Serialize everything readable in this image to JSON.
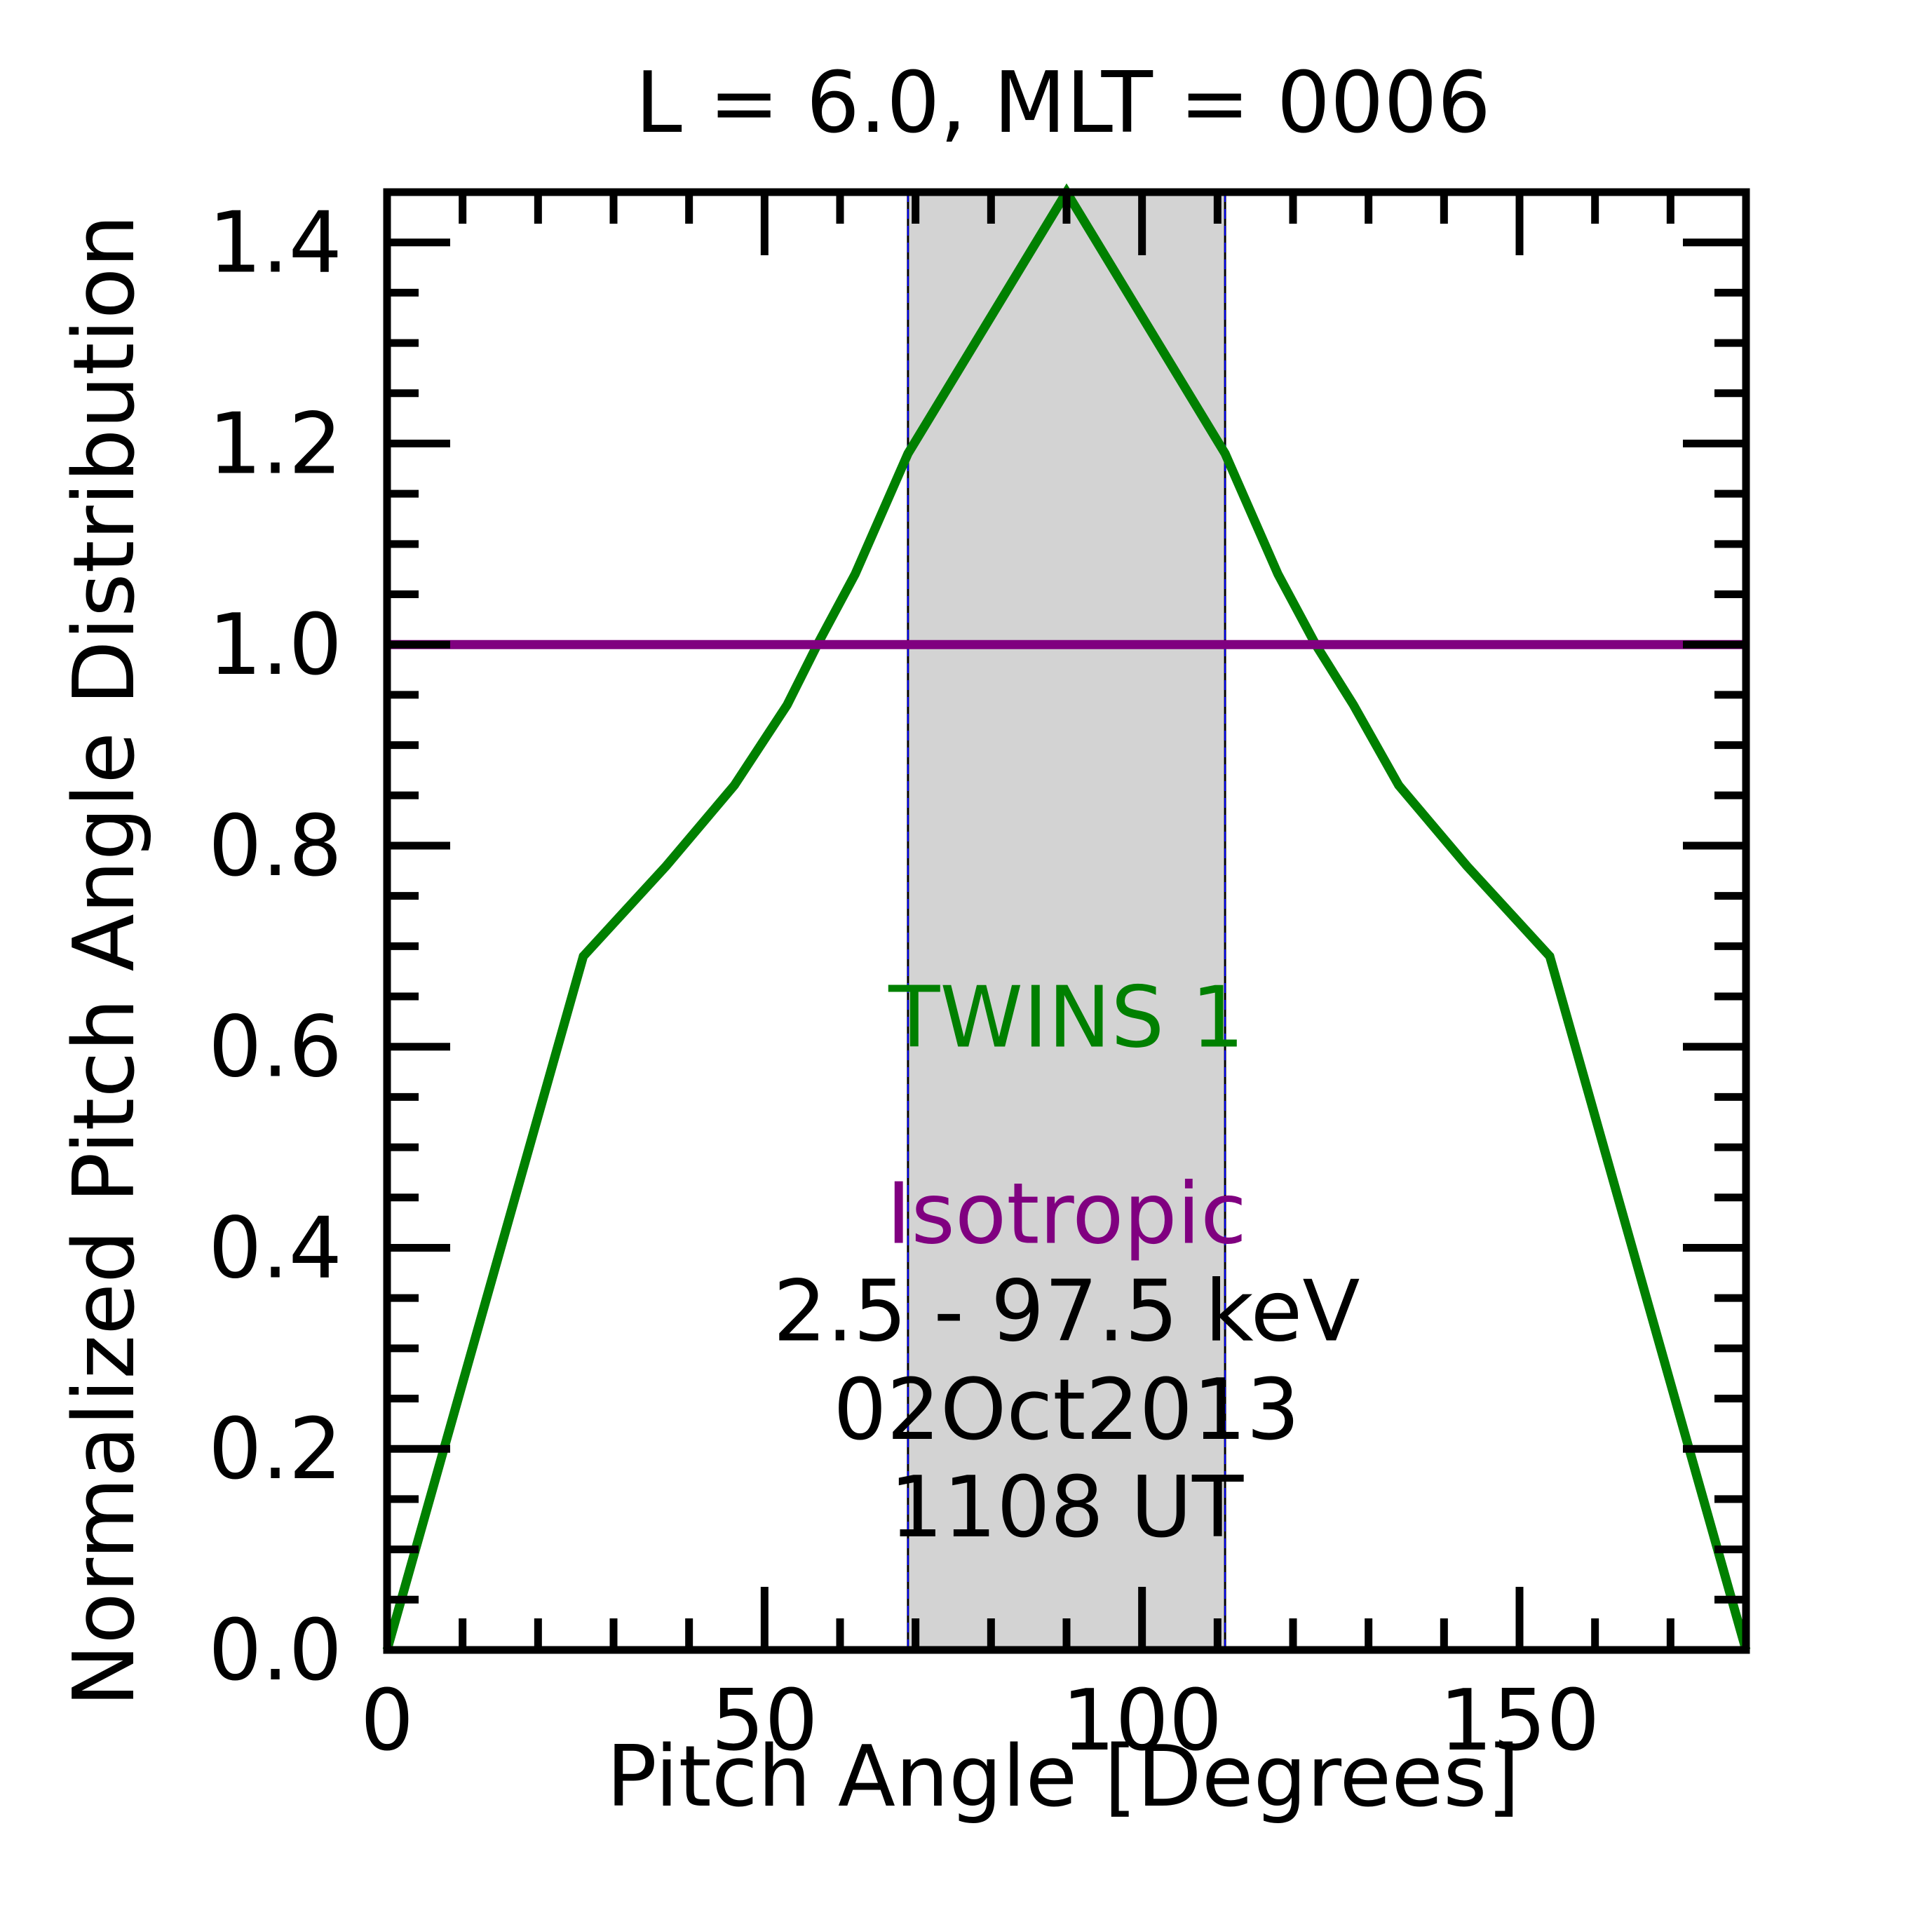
{
  "chart_data": {
    "type": "line",
    "title": "L =  6.0, MLT = 0006",
    "xlabel": "Pitch Angle [Degrees]",
    "ylabel": "Normalized Pitch Angle Distribution",
    "xlim": [
      0,
      180
    ],
    "ylim": [
      0,
      1.45
    ],
    "x_ticks": [
      0,
      50,
      100,
      150
    ],
    "x_tick_labels": [
      "0",
      "50",
      "100",
      "150"
    ],
    "x_minor_step": 10,
    "y_ticks": [
      0,
      0.2,
      0.4,
      0.6,
      0.8,
      1.0,
      1.2,
      1.4
    ],
    "y_tick_labels": [
      "0.0",
      "0.2",
      "0.4",
      "0.6",
      "0.8",
      "1.0",
      "1.2",
      "1.4"
    ],
    "y_minor_step": 0.05,
    "grid": false,
    "shaded_band": {
      "x_range": [
        69,
        111
      ],
      "color": "#d3d3d3"
    },
    "series": [
      {
        "name": "TWINS 1",
        "color": "#008000",
        "x": [
          0,
          26,
          37,
          46,
          53,
          57,
          62,
          69,
          90,
          111,
          118,
          123,
          128,
          134,
          143,
          154,
          180
        ],
        "y": [
          0,
          0.69,
          0.78,
          0.86,
          0.94,
          1.0,
          1.07,
          1.19,
          1.45,
          1.19,
          1.07,
          1.0,
          0.94,
          0.86,
          0.78,
          0.69,
          0
        ]
      },
      {
        "name": "Isotropic",
        "color": "#800080",
        "x": [
          0,
          180
        ],
        "y": [
          1.0,
          1.0
        ]
      }
    ],
    "annotations": [
      {
        "id": "twins",
        "text": "TWINS 1",
        "color": "#008000",
        "x": 90,
        "y": 0.6
      },
      {
        "id": "isotropic",
        "text": "Isotropic",
        "color": "#800080",
        "x": 90,
        "y": 0.405
      },
      {
        "id": "energy",
        "text": "2.5 - 97.5 keV",
        "color": "#000000",
        "x": 90,
        "y": 0.308
      },
      {
        "id": "date",
        "text": "02Oct2013",
        "color": "#000000",
        "x": 90,
        "y": 0.21
      },
      {
        "id": "time",
        "text": "1108 UT",
        "color": "#000000",
        "x": 90,
        "y": 0.113
      }
    ]
  }
}
